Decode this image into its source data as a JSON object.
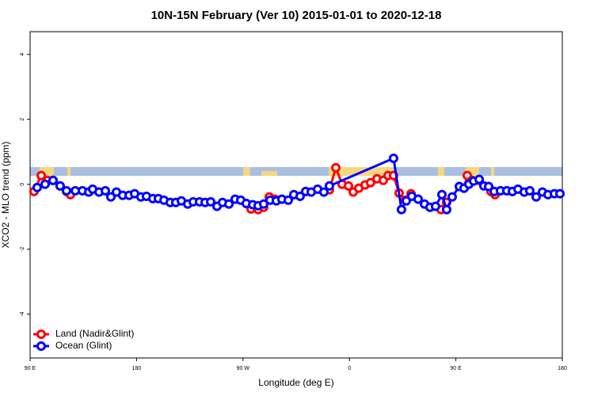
{
  "chart_data": {
    "type": "line",
    "title": "10N-15N February (Ver 10)   2015-01-01 to 2020-12-18",
    "x_label": "Longitude (deg E)",
    "y_label": "XCO2 - MLO trend (ppm)",
    "xlim": [
      90,
      540
    ],
    "xticks": [
      {
        "value": 90,
        "label": "90 E"
      },
      {
        "value": 180,
        "label": "180"
      },
      {
        "value": 270,
        "label": "90 W"
      },
      {
        "value": 360,
        "label": "0"
      },
      {
        "value": 450,
        "label": "90 E"
      },
      {
        "value": 540,
        "label": "180"
      }
    ],
    "ylim": [
      -5.35,
      4.7
    ],
    "yticks": [
      -4,
      -2,
      0,
      2,
      4
    ],
    "legend": "bottom-left",
    "series": [
      {
        "name": "Land (Nadir&Glint)",
        "color": "#ff0000",
        "x": [
          93.3,
          99.4,
          104.7,
          109.4,
          115.4,
          120.8,
          124.1,
          null,
          272.8,
          276.8,
          282.8,
          287.5,
          292.2,
          296.9,
          null,
          343.1,
          348.5,
          353.8,
          359.2,
          363.2,
          367.9,
          373.2,
          377.9,
          383.3,
          388.6,
          392.7,
          397.3,
          402.0,
          407.4,
          412.1,
          null,
          437.5,
          442.2,
          null,
          456.9,
          459.6,
          463.6,
          469.7,
          479.7,
          483.1
        ],
        "values": [
          -0.22,
          0.27,
          0.12,
          0.12,
          -0.05,
          -0.22,
          -0.32,
          null,
          -0.59,
          -0.76,
          -0.78,
          -0.71,
          -0.39,
          -0.46,
          null,
          -0.17,
          0.51,
          0,
          -0.05,
          -0.24,
          -0.12,
          -0.02,
          0.05,
          0.17,
          0.12,
          0.27,
          0.27,
          -0.27,
          -0.49,
          -0.29,
          null,
          -0.78,
          -0.56,
          null,
          -0.12,
          0.27,
          0.12,
          0.12,
          -0.22,
          -0.32
        ]
      },
      {
        "name": "Ocean (Glint)",
        "color": "#0000ff",
        "x": [
          96.0,
          102.7,
          109.4,
          115.4,
          120.8,
          128.2,
          134.2,
          139.6,
          142.9,
          148.3,
          153.6,
          158.3,
          163.0,
          168.3,
          173.7,
          178.4,
          183.7,
          188.4,
          193.8,
          198.5,
          203.2,
          208.5,
          213.2,
          217.9,
          223.3,
          227.9,
          233.3,
          238.0,
          242.7,
          248.0,
          252.7,
          258.1,
          263.4,
          268.1,
          272.8,
          278.2,
          282.8,
          287.5,
          292.9,
          298.2,
          302.9,
          308.3,
          313.0,
          318.3,
          323.0,
          327.7,
          333.1,
          338.4,
          343.1,
          397.3,
          404.0,
          408.1,
          412.7,
          418.1,
          423.5,
          428.1,
          432.8,
          438.2,
          442.2,
          446.9,
          452.9,
          456.9,
          461.0,
          465.0,
          469.7,
          473.7,
          477.7,
          482.4,
          487.7,
          493.1,
          497.8,
          502.5,
          507.8,
          512.5,
          517.9,
          523.2,
          527.9,
          533.3,
          538.0
        ],
        "values": [
          -0.1,
          0,
          0.12,
          -0.05,
          -0.2,
          -0.2,
          -0.2,
          -0.24,
          -0.15,
          -0.24,
          -0.2,
          -0.39,
          -0.24,
          -0.34,
          -0.34,
          -0.29,
          -0.39,
          -0.37,
          -0.44,
          -0.44,
          -0.49,
          -0.56,
          -0.56,
          -0.51,
          -0.61,
          -0.54,
          -0.54,
          -0.56,
          -0.54,
          -0.68,
          -0.56,
          -0.61,
          -0.46,
          -0.49,
          -0.59,
          -0.63,
          -0.66,
          -0.61,
          -0.49,
          -0.51,
          -0.46,
          -0.49,
          -0.32,
          -0.37,
          -0.22,
          -0.24,
          -0.15,
          -0.24,
          -0.05,
          0.8,
          -0.78,
          -0.51,
          -0.37,
          -0.46,
          -0.61,
          -0.71,
          -0.68,
          -0.32,
          -0.78,
          -0.39,
          -0.07,
          -0.12,
          0,
          0.1,
          0.15,
          -0.05,
          -0.07,
          -0.22,
          -0.2,
          -0.2,
          -0.22,
          -0.15,
          -0.24,
          -0.2,
          -0.39,
          -0.24,
          -0.32,
          -0.29,
          -0.29
        ]
      }
    ]
  }
}
